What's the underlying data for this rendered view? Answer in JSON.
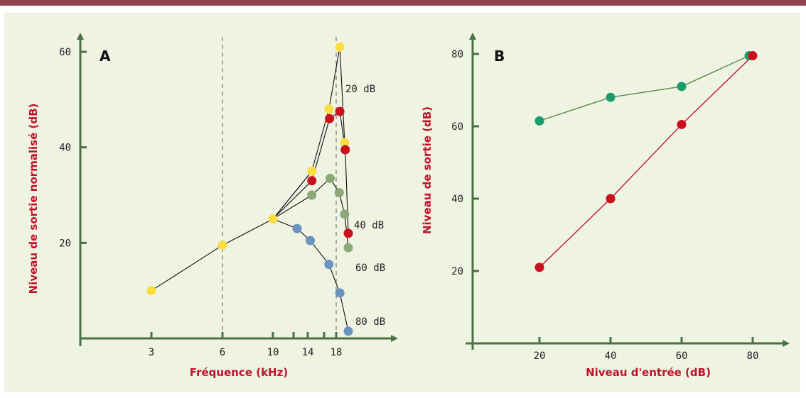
{
  "colors": {
    "top_bar": "#8f4652",
    "panel_background": "#eef3e2",
    "axis": "#4a7046",
    "title_red": "#c0122a",
    "yellow": "#fddd3f",
    "red": "#c8101e",
    "olive_green": "#8aa878",
    "blue": "#6b93c0",
    "teal_green": "#1a9c6a",
    "crimson_line": "#c8103e"
  },
  "chart_data": [
    {
      "type": "line",
      "panel": "A",
      "xlabel": "Fréquence (kHz)",
      "ylabel": "Niveau de sortie normalisé (dB)",
      "x_tick_values": [
        3,
        6,
        10,
        12,
        14,
        16,
        18
      ],
      "x_tick_labels": [
        "3",
        "6",
        "10",
        "",
        "14",
        "",
        "18"
      ],
      "y_ticks": [
        20,
        40,
        60
      ],
      "xlim": [
        0,
        24
      ],
      "ylim": [
        0,
        63
      ],
      "reference_lines_x": [
        6,
        18
      ],
      "series": [
        {
          "name": "20 dB",
          "color": "yellow",
          "x": [
            3,
            6,
            10,
            14.5,
            16.8,
            18.6
          ],
          "y": [
            10,
            19.5,
            25,
            35,
            48,
            61
          ]
        },
        {
          "name": "",
          "color": "yellow",
          "x": [
            18.6,
            19.4
          ],
          "y": [
            61,
            41
          ]
        },
        {
          "name": "40 dB",
          "color": "red",
          "x": [
            14.5,
            16.9,
            18.6,
            19.5,
            20
          ],
          "y": [
            33,
            46,
            47.5,
            39.5,
            22
          ]
        },
        {
          "name": "60 dB",
          "color": "olive_green",
          "x": [
            14.5,
            17,
            18.5,
            19.4,
            20
          ],
          "y": [
            30,
            33.5,
            30.5,
            26,
            19
          ]
        },
        {
          "name": "80 dB",
          "color": "blue",
          "x": [
            12.5,
            14.3,
            16.8,
            18.6,
            20
          ],
          "y": [
            23,
            20.5,
            15.5,
            9.5,
            1.5
          ]
        }
      ],
      "connectors": [
        {
          "from": [
            10,
            25
          ],
          "to": [
            14.5,
            35
          ]
        },
        {
          "from": [
            10,
            25
          ],
          "to": [
            14.5,
            33
          ]
        },
        {
          "from": [
            10,
            25
          ],
          "to": [
            14.5,
            30
          ]
        },
        {
          "from": [
            10,
            25
          ],
          "to": [
            12.5,
            23
          ]
        }
      ],
      "series_labels": [
        "20 dB",
        "40 dB",
        "60 dB",
        "80 dB"
      ]
    },
    {
      "type": "line",
      "panel": "B",
      "xlabel": "Niveau d'entrée (dB)",
      "ylabel": "Niveau de sortie (dB)",
      "x_ticks": [
        20,
        40,
        60,
        80
      ],
      "y_ticks": [
        20,
        40,
        60,
        80
      ],
      "xlim": [
        0,
        100
      ],
      "ylim": [
        0,
        85
      ],
      "series": [
        {
          "name": "",
          "color": "teal_green",
          "line_color": "#5a8a52",
          "x": [
            20,
            40,
            60,
            79
          ],
          "y": [
            61.5,
            68,
            71,
            79.5
          ]
        },
        {
          "name": "",
          "color": "red",
          "line_color": "#c8103e",
          "x": [
            20,
            40,
            60,
            80
          ],
          "y": [
            21,
            40,
            60.5,
            79.5
          ]
        }
      ]
    }
  ]
}
